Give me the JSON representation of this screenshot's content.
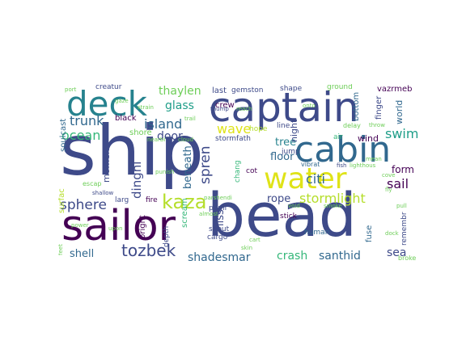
{
  "palette": {
    "dark_purple": "#440154",
    "purple": "#482878",
    "indigo": "#3e4a89",
    "blue": "#31688e",
    "teal": "#26828e",
    "teal_green": "#1f9e89",
    "green": "#35b779",
    "light_green": "#6ece58",
    "yellow_green": "#b5de2b",
    "yellow": "#fde725",
    "mustard": "#dfe318"
  },
  "words": {
    "ship": "ship",
    "bead": "bead",
    "sailor": "sailor",
    "captain": "captain",
    "deck": "deck",
    "cabin": "cabin",
    "water": "water",
    "kaza": "kaza",
    "tozbek": "tozbek",
    "stormlight": "stormlight",
    "sphere": "sphere",
    "ocean": "ocean",
    "island": "island",
    "trunk": "trunk",
    "glass": "glass",
    "thaylen": "thaylen",
    "door": "door",
    "wave": "wave",
    "citi": "citi",
    "swim": "swim",
    "spren": "spren",
    "sail": "sail",
    "form": "form",
    "rope": "rope",
    "tree": "tree",
    "floor": "floor",
    "dinghi": "dinghi",
    "beneath": "beneath",
    "liss": "liss",
    "shell": "shell",
    "shadesmar": "shadesmar",
    "crash": "crash",
    "santhid": "santhid",
    "sea": "sea",
    "moment": "moment",
    "surfac": "surfac",
    "soulcast": "soulcast",
    "black": "black",
    "shore": "shore",
    "creatur": "creatur",
    "last": "last",
    "gemston": "gemston",
    "shape": "shape",
    "ground": "ground",
    "vazrmeb": "vazrmeb",
    "bottom": "bottom",
    "finger": "finger",
    "world": "world",
    "crew": "crew",
    "line": "line",
    "night": "night",
    "hope": "hope",
    "stormfath": "stormfath",
    "jump": "jump",
    "air": "air",
    "wind": "wind",
    "cot": "cot",
    "scream": "scream",
    "chang": "chang",
    "bright": "bright",
    "fire": "fire",
    "larg": "larg",
    "puuli": "puuli",
    "cargo": "cargo",
    "shout": "shout",
    "depth": "depth",
    "stick": "stick",
    "human": "human",
    "fuse": "fuse",
    "remembr": "remembr",
    "vibrat": "vibrat",
    "broke": "broke",
    "port": "port",
    "gaze": "gaze",
    "strain": "strain",
    "trail": "trail",
    "nearbi": "nearbi",
    "cloud": "cloud",
    "escap": "escap",
    "shallow": "shallow",
    "thump": "thump",
    "almost": "almost",
    "onto": "onto",
    "delay": "delay",
    "throw": "throw",
    "fish": "fish",
    "lighthous": "lighthous",
    "cove": "cove",
    "void": "void",
    "smoke": "smoke",
    "parshendi": "parshendi",
    "reach": "reach",
    "skin": "skin",
    "cart": "cart",
    "power": "power",
    "upon": "upon",
    "feet": "feet",
    "dock": "dock",
    "fly": "fly",
    "mean": "mean",
    "punish": "punish",
    "pull": "pull"
  }
}
